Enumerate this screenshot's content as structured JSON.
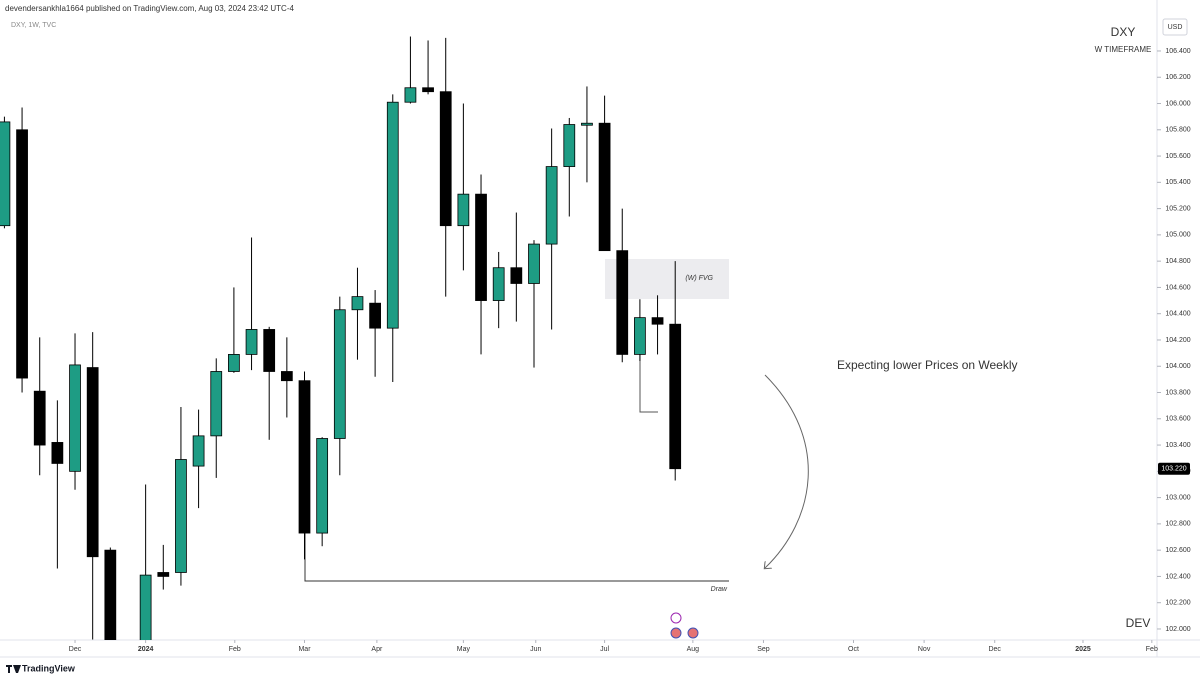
{
  "header": {
    "publisher": "devendersankhla1664 published on TradingView.com, Aug 03, 2024 23:42 UTC-4"
  },
  "chart_data": {
    "type": "candlestick",
    "title": "DXY",
    "subtitle": "DXY, 1W, TVC",
    "timeframe_note": "W TIMEFRAME",
    "fvg_label": "(W) FVG",
    "draw_label": "Draw",
    "note": "Expecting lower Prices on Weekly",
    "author_tag": "DEV",
    "y_axis_label": "USD",
    "categories": [
      null,
      null,
      null,
      null,
      null,
      null,
      null,
      null,
      null,
      null,
      null,
      null,
      null,
      null,
      null,
      null,
      null,
      null,
      null,
      null,
      null,
      null,
      null,
      null,
      null,
      null,
      null,
      null,
      null,
      null,
      null,
      null,
      null,
      null,
      null,
      null,
      null,
      null,
      null
    ],
    "open": [
      105.07,
      105.8,
      103.81,
      103.42,
      103.2,
      103.99,
      102.6,
      null,
      101.9,
      102.43,
      102.43,
      103.24,
      103.47,
      103.96,
      104.09,
      104.28,
      103.96,
      103.89,
      102.73,
      103.45,
      104.43,
      104.48,
      104.29,
      106.01,
      106.12,
      106.09,
      105.07,
      105.31,
      104.5,
      104.75,
      104.63,
      104.93,
      105.52,
      105.84,
      105.85,
      104.88,
      104.09,
      104.37,
      104.32
    ],
    "high": [
      105.9,
      105.97,
      104.22,
      103.74,
      104.25,
      104.26,
      102.62,
      null,
      103.1,
      102.64,
      103.69,
      103.67,
      104.06,
      104.6,
      104.98,
      104.3,
      104.22,
      103.96,
      103.46,
      104.53,
      104.75,
      104.58,
      106.07,
      106.51,
      106.48,
      106.5,
      106.0,
      105.46,
      104.87,
      105.17,
      104.96,
      105.81,
      105.89,
      106.13,
      106.06,
      105.2,
      104.51,
      104.54,
      104.8
    ],
    "low": [
      105.05,
      103.8,
      103.17,
      102.46,
      103.06,
      101.92,
      101.88,
      null,
      101.88,
      102.3,
      102.33,
      102.92,
      103.15,
      103.95,
      103.97,
      103.44,
      103.61,
      102.53,
      102.63,
      103.17,
      104.05,
      103.92,
      103.88,
      106.0,
      106.07,
      104.53,
      104.73,
      104.09,
      104.29,
      104.34,
      103.99,
      104.28,
      105.14,
      105.4,
      104.88,
      104.03,
      104.04,
      104.09,
      103.13
    ],
    "close": [
      105.86,
      103.91,
      103.4,
      103.26,
      104.01,
      102.55,
      101.9,
      null,
      102.41,
      102.4,
      103.29,
      103.47,
      103.96,
      104.09,
      104.28,
      103.96,
      103.89,
      102.73,
      103.45,
      104.43,
      104.53,
      104.29,
      106.01,
      106.12,
      106.09,
      105.07,
      105.31,
      104.5,
      104.75,
      104.63,
      104.93,
      105.52,
      105.84,
      105.85,
      104.88,
      104.09,
      104.37,
      104.32,
      103.22
    ],
    "up_color": "#1e9c84",
    "down_color": "#000000",
    "last_price": {
      "value": 103.22,
      "label": "103.220"
    },
    "grid": false,
    "ylim": [
      101.916,
      106.651
    ],
    "yticks": [
      {
        "value": 102.0,
        "label": "102.000"
      },
      {
        "value": 102.2,
        "label": "102.200"
      },
      {
        "value": 102.4,
        "label": "102.400"
      },
      {
        "value": 102.6,
        "label": "102.600"
      },
      {
        "value": 102.8,
        "label": "102.800"
      },
      {
        "value": 103.0,
        "label": "103.000"
      },
      {
        "value": 103.2,
        "label": "103.200"
      },
      {
        "value": 103.4,
        "label": "103.400"
      },
      {
        "value": 103.6,
        "label": "103.600"
      },
      {
        "value": 103.8,
        "label": "103.800"
      },
      {
        "value": 104.0,
        "label": "104.000"
      },
      {
        "value": 104.2,
        "label": "104.200"
      },
      {
        "value": 104.4,
        "label": "104.400"
      },
      {
        "value": 104.6,
        "label": "104.600"
      },
      {
        "value": 104.8,
        "label": "104.800"
      },
      {
        "value": 105.0,
        "label": "105.000"
      },
      {
        "value": 105.2,
        "label": "105.200"
      },
      {
        "value": 105.4,
        "label": "105.400"
      },
      {
        "value": 105.6,
        "label": "105.600"
      },
      {
        "value": 105.8,
        "label": "105.800"
      },
      {
        "value": 106.0,
        "label": "106.000"
      },
      {
        "value": 106.2,
        "label": "106.200"
      },
      {
        "value": 106.4,
        "label": "106.400"
      }
    ],
    "xlim": [
      -0.25,
      65.18
    ],
    "xticks": [
      {
        "value": 4.0,
        "label": "Dec"
      },
      {
        "value": 8.0,
        "label": "2024"
      },
      {
        "value": 13.05,
        "label": "Feb"
      },
      {
        "value": 17.0,
        "label": "Mar"
      },
      {
        "value": 21.1,
        "label": "Apr"
      },
      {
        "value": 26.0,
        "label": "May"
      },
      {
        "value": 30.1,
        "label": "Jun"
      },
      {
        "value": 34.0,
        "label": "Jul"
      },
      {
        "value": 39.0,
        "label": "Aug"
      },
      {
        "value": 43.0,
        "label": "Sep"
      },
      {
        "value": 48.1,
        "label": "Oct"
      },
      {
        "value": 52.1,
        "label": "Nov"
      },
      {
        "value": 56.1,
        "label": "Dec"
      },
      {
        "value": 61.1,
        "label": "2025"
      },
      {
        "value": 65.0,
        "label": "Feb"
      }
    ]
  },
  "footer": {
    "brand": "TradingView"
  }
}
